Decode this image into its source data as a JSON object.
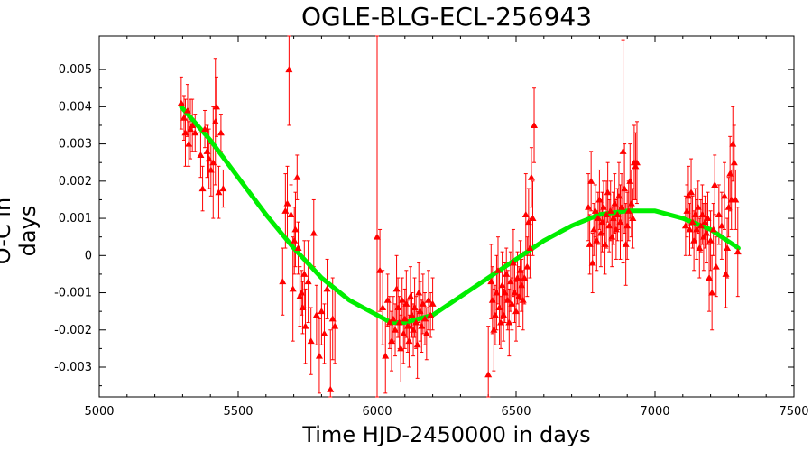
{
  "chart_data": {
    "type": "scatter",
    "title": "OGLE-BLG-ECL-256943",
    "xlabel": "Time HJD-2450000 in days",
    "ylabel": "O-C in days",
    "xlim": [
      5000,
      7500
    ],
    "ylim": [
      -0.0038,
      0.0059
    ],
    "xticks": [
      5000,
      5500,
      6000,
      6500,
      7000,
      7500
    ],
    "xtick_labels": [
      "5000",
      "5500",
      "6000",
      "6500",
      "7000",
      "7500"
    ],
    "yticks": [
      -0.003,
      -0.002,
      -0.001,
      0,
      0.001,
      0.002,
      0.003,
      0.004,
      0.005
    ],
    "ytick_labels": [
      "-0.003",
      "-0.002",
      "-0.001",
      "0",
      "0.001",
      "0.002",
      "0.003",
      "0.004",
      "0.005"
    ],
    "grid": false,
    "series": [
      {
        "marker": "triangle",
        "color": "#ff0000",
        "points": [
          [
            5295,
            0.0041,
            0.0007
          ],
          [
            5305,
            0.0037,
            0.0006
          ],
          [
            5310,
            0.0033,
            0.0009
          ],
          [
            5318,
            0.0039,
            0.0007
          ],
          [
            5322,
            0.003,
            0.0006
          ],
          [
            5328,
            0.0034,
            0.0008
          ],
          [
            5335,
            0.0035,
            0.0007
          ],
          [
            5345,
            0.0033,
            0.0005
          ],
          [
            5365,
            0.0027,
            0.0006
          ],
          [
            5372,
            0.0018,
            0.0006
          ],
          [
            5380,
            0.0034,
            0.0005
          ],
          [
            5388,
            0.0028,
            0.0007
          ],
          [
            5395,
            0.0026,
            0.0008
          ],
          [
            5402,
            0.0023,
            0.0007
          ],
          [
            5410,
            0.0025,
            0.0015
          ],
          [
            5418,
            0.0036,
            0.0017
          ],
          [
            5422,
            0.004,
            0.0008
          ],
          [
            5430,
            0.0017,
            0.0007
          ],
          [
            5438,
            0.0033,
            0.0005
          ],
          [
            5446,
            0.0018,
            0.0005
          ],
          [
            5660,
            -0.0007,
            0.0009
          ],
          [
            5670,
            0.0012,
            0.001
          ],
          [
            5677,
            0.0014,
            0.001
          ],
          [
            5683,
            0.005,
            0.0015
          ],
          [
            5690,
            0.0011,
            0.0008
          ],
          [
            5697,
            -0.0009,
            0.0014
          ],
          [
            5702,
            0.0004,
            0.0009
          ],
          [
            5706,
            0.0007,
            0.001
          ],
          [
            5712,
            0.0021,
            0.0006
          ],
          [
            5716,
            0.0002,
            0.0007
          ],
          [
            5722,
            -0.0011,
            0.0008
          ],
          [
            5728,
            -0.001,
            0.0006
          ],
          [
            5732,
            -0.0014,
            0.0007
          ],
          [
            5738,
            -0.0005,
            0.0009
          ],
          [
            5742,
            -0.0019,
            0.001
          ],
          [
            5752,
            -0.0007,
            0.0011
          ],
          [
            5762,
            -0.0023,
            0.0009
          ],
          [
            5772,
            0.0006,
            0.0009
          ],
          [
            5782,
            -0.0016,
            0.0008
          ],
          [
            5792,
            -0.0027,
            0.001
          ],
          [
            5800,
            -0.0015,
            0.0009
          ],
          [
            5810,
            -0.0021,
            0.0008
          ],
          [
            5820,
            -0.0009,
            0.0008
          ],
          [
            5832,
            -0.0036,
            0.0016
          ],
          [
            5840,
            -0.0017,
            0.0011
          ],
          [
            5848,
            -0.0019,
            0.001
          ],
          [
            6000,
            0.0005,
            0.0055
          ],
          [
            6010,
            -0.0004,
            0.0011
          ],
          [
            6020,
            -0.0014,
            0.001
          ],
          [
            6030,
            -0.0027,
            0.001
          ],
          [
            6038,
            -0.0012,
            0.0007
          ],
          [
            6045,
            -0.0018,
            0.0007
          ],
          [
            6052,
            -0.0023,
            0.0008
          ],
          [
            6058,
            -0.0017,
            0.0006
          ],
          [
            6065,
            -0.002,
            0.0007
          ],
          [
            6070,
            -0.0009,
            0.0009
          ],
          [
            6075,
            -0.0014,
            0.0008
          ],
          [
            6080,
            -0.0018,
            0.0007
          ],
          [
            6085,
            -0.0025,
            0.0009
          ],
          [
            6090,
            -0.0012,
            0.0006
          ],
          [
            6095,
            -0.0021,
            0.0008
          ],
          [
            6100,
            -0.0017,
            0.0008
          ],
          [
            6105,
            -0.0013,
            0.0009
          ],
          [
            6110,
            -0.0019,
            0.0007
          ],
          [
            6115,
            -0.0023,
            0.0007
          ],
          [
            6120,
            -0.0011,
            0.0008
          ],
          [
            6125,
            -0.0016,
            0.0006
          ],
          [
            6130,
            -0.002,
            0.0007
          ],
          [
            6135,
            -0.0014,
            0.0008
          ],
          [
            6140,
            -0.0018,
            0.0007
          ],
          [
            6145,
            -0.0024,
            0.0009
          ],
          [
            6150,
            -0.001,
            0.0008
          ],
          [
            6155,
            -0.0015,
            0.0008
          ],
          [
            6160,
            -0.0019,
            0.0007
          ],
          [
            6165,
            -0.0013,
            0.0008
          ],
          [
            6172,
            -0.0017,
            0.0007
          ],
          [
            6178,
            -0.0021,
            0.0007
          ],
          [
            6185,
            -0.0012,
            0.0008
          ],
          [
            6192,
            -0.0016,
            0.0006
          ],
          [
            6200,
            -0.0013,
            0.0007
          ],
          [
            6400,
            -0.0032,
            0.0013
          ],
          [
            6410,
            -0.0007,
            0.001
          ],
          [
            6415,
            -0.0012,
            0.0009
          ],
          [
            6420,
            -0.002,
            0.0011
          ],
          [
            6425,
            -0.0016,
            0.0008
          ],
          [
            6430,
            -0.001,
            0.001
          ],
          [
            6435,
            -0.0004,
            0.0009
          ],
          [
            6440,
            -0.0014,
            0.001
          ],
          [
            6445,
            -0.0018,
            0.0007
          ],
          [
            6450,
            -0.0008,
            0.0009
          ],
          [
            6455,
            -0.0016,
            0.0007
          ],
          [
            6460,
            -0.001,
            0.0008
          ],
          [
            6465,
            -0.0005,
            0.0007
          ],
          [
            6470,
            -0.0012,
            0.0008
          ],
          [
            6475,
            -0.0018,
            0.0009
          ],
          [
            6480,
            -0.0007,
            0.0008
          ],
          [
            6485,
            -0.0013,
            0.0007
          ],
          [
            6490,
            -0.0002,
            0.0009
          ],
          [
            6495,
            -0.001,
            0.0008
          ],
          [
            6500,
            -0.0015,
            0.0008
          ],
          [
            6505,
            -0.0006,
            0.0007
          ],
          [
            6510,
            -0.0011,
            0.0008
          ],
          [
            6515,
            -0.0004,
            0.0008
          ],
          [
            6520,
            -0.0008,
            0.0007
          ],
          [
            6525,
            -0.0012,
            0.0008
          ],
          [
            6530,
            -0.0006,
            0.0007
          ],
          [
            6535,
            0.0011,
            0.0011
          ],
          [
            6540,
            -0.0003,
            0.0008
          ],
          [
            6545,
            0.0009,
            0.0009
          ],
          [
            6550,
            0.0002,
            0.0008
          ],
          [
            6555,
            0.0021,
            0.0008
          ],
          [
            6560,
            0.001,
            0.001
          ],
          [
            6565,
            0.0035,
            0.001
          ],
          [
            6760,
            0.0013,
            0.0009
          ],
          [
            6765,
            0.0003,
            0.0008
          ],
          [
            6770,
            0.002,
            0.0008
          ],
          [
            6775,
            -0.0002,
            0.0008
          ],
          [
            6780,
            0.0007,
            0.0007
          ],
          [
            6785,
            0.0012,
            0.0007
          ],
          [
            6790,
            0.0004,
            0.0008
          ],
          [
            6795,
            0.001,
            0.0007
          ],
          [
            6800,
            0.0015,
            0.0008
          ],
          [
            6805,
            0.0006,
            0.0009
          ],
          [
            6810,
            0.0009,
            0.0008
          ],
          [
            6815,
            0.0013,
            0.0007
          ],
          [
            6820,
            0.0003,
            0.0008
          ],
          [
            6825,
            0.0011,
            0.0009
          ],
          [
            6830,
            0.0017,
            0.0008
          ],
          [
            6835,
            0.0008,
            0.0007
          ],
          [
            6840,
            0.0012,
            0.0008
          ],
          [
            6845,
            0.0005,
            0.0008
          ],
          [
            6850,
            0.001,
            0.0007
          ],
          [
            6855,
            0.0014,
            0.0008
          ],
          [
            6860,
            0.0007,
            0.0008
          ],
          [
            6865,
            0.0011,
            0.0007
          ],
          [
            6870,
            0.0016,
            0.0009
          ],
          [
            6875,
            0.0009,
            0.001
          ],
          [
            6880,
            0.0013,
            0.0009
          ],
          [
            6885,
            0.0028,
            0.003
          ],
          [
            6890,
            0.0018,
            0.0012
          ],
          [
            6895,
            0.0003,
            0.0011
          ],
          [
            6900,
            0.0008,
            0.0009
          ],
          [
            6905,
            0.0012,
            0.0008
          ],
          [
            6910,
            0.002,
            0.001
          ],
          [
            6915,
            0.0014,
            0.0009
          ],
          [
            6920,
            0.001,
            0.0008
          ],
          [
            6925,
            0.0025,
            0.001
          ],
          [
            6930,
            0.0024,
            0.0009
          ],
          [
            6935,
            0.0025,
            0.0011
          ],
          [
            7110,
            0.0008,
            0.0008
          ],
          [
            7115,
            0.0012,
            0.0007
          ],
          [
            7120,
            0.0016,
            0.0008
          ],
          [
            7125,
            0.0007,
            0.0007
          ],
          [
            7130,
            0.0017,
            0.0009
          ],
          [
            7135,
            0.0009,
            0.0007
          ],
          [
            7140,
            0.0004,
            0.0008
          ],
          [
            7145,
            0.0011,
            0.0007
          ],
          [
            7150,
            0.0007,
            0.0008
          ],
          [
            7155,
            0.0013,
            0.0007
          ],
          [
            7160,
            0.0002,
            0.0008
          ],
          [
            7165,
            0.0008,
            0.0007
          ],
          [
            7170,
            0.0011,
            0.0008
          ],
          [
            7175,
            0.0005,
            0.0009
          ],
          [
            7180,
            0.0009,
            0.0007
          ],
          [
            7185,
            0.0006,
            0.0008
          ],
          [
            7190,
            0.001,
            0.0007
          ],
          [
            7195,
            -0.0006,
            0.0009
          ],
          [
            7200,
            0.0004,
            0.0008
          ],
          [
            7205,
            -0.001,
            0.001
          ],
          [
            7210,
            0.0007,
            0.0007
          ],
          [
            7215,
            0.0019,
            0.0008
          ],
          [
            7220,
            -0.0003,
            0.0008
          ],
          [
            7230,
            0.0011,
            0.0008
          ],
          [
            7240,
            0.0008,
            0.0009
          ],
          [
            7250,
            0.0016,
            0.0009
          ],
          [
            7255,
            -0.0005,
            0.0009
          ],
          [
            7260,
            0.0002,
            0.0008
          ],
          [
            7265,
            0.0013,
            0.0008
          ],
          [
            7270,
            0.0022,
            0.001
          ],
          [
            7275,
            0.0015,
            0.0008
          ],
          [
            7280,
            0.003,
            0.001
          ],
          [
            7285,
            0.0025,
            0.001
          ],
          [
            7290,
            0.0015,
            0.0008
          ],
          [
            7298,
            0.0001,
            0.0012
          ]
        ]
      },
      {
        "marker": "line",
        "color": "#00ee00",
        "x": [
          5295,
          5400,
          5500,
          5600,
          5700,
          5800,
          5900,
          6000,
          6050,
          6100,
          6200,
          6300,
          6400,
          6500,
          6600,
          6700,
          6800,
          6900,
          6950,
          7000,
          7100,
          7200,
          7300
        ],
        "y": [
          0.004,
          0.0031,
          0.0021,
          0.0011,
          0.0002,
          -0.0006,
          -0.0012,
          -0.0016,
          -0.0018,
          -0.0018,
          -0.0016,
          -0.0011,
          -0.0006,
          -0.0001,
          0.0004,
          0.0008,
          0.0011,
          0.0012,
          0.0012,
          0.0012,
          0.001,
          0.0007,
          0.0002
        ]
      }
    ]
  }
}
